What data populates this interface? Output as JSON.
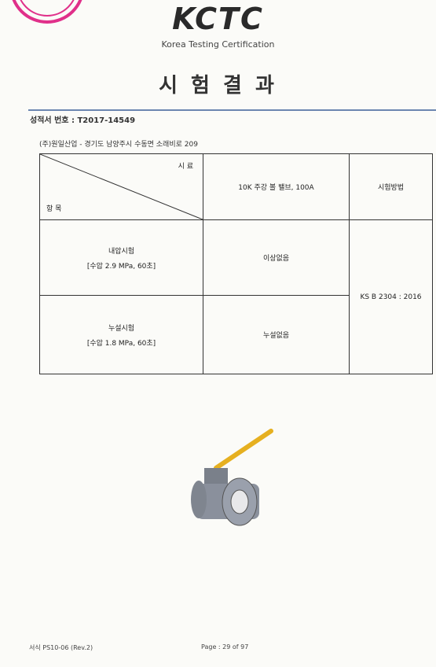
{
  "header": {
    "logo": "KCTC",
    "subtitle": "Korea Testing Certification"
  },
  "title": "시 험 결 과",
  "report_number": "성적서 번호 : T2017-14549",
  "client": "(주)원일산업 - 경기도 남양주시 수동면 소래비로 209",
  "table": {
    "corner_top": "시 료",
    "corner_bottom": "항 목",
    "sample": "10K 주강 볼 밸브, 100A",
    "method_header": "시험방법",
    "rows": [
      {
        "item": "내압시험",
        "condition": "[수압 2.9 MPa, 60초]",
        "result": "이상없음"
      },
      {
        "item": "누설시험",
        "condition": "[수압 1.8 MPa, 60초]",
        "result": "누설없음"
      }
    ],
    "method": "KS B 2304 : 2016"
  },
  "footer": {
    "form": "서식 PS10-06 (Rev.2)",
    "page": "Page : 29 of 97"
  }
}
